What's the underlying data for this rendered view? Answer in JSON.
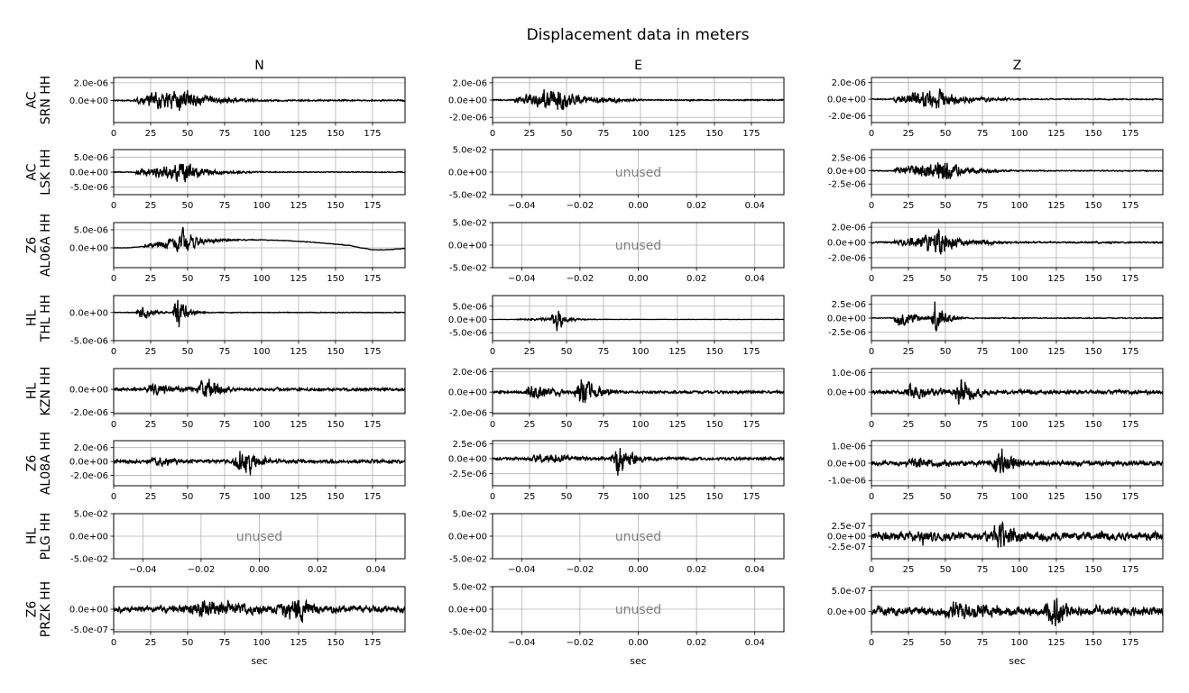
{
  "title": "Displacement data in meters",
  "columns": [
    "N",
    "E",
    "Z"
  ],
  "xlabel": "sec",
  "unused_label": "unused",
  "chart_data": {
    "type": "line",
    "title": "Displacement data in meters",
    "xlabel": "sec",
    "x_ticks_used": [
      "0",
      "25",
      "50",
      "75",
      "100",
      "125",
      "150",
      "175"
    ],
    "x_ticks_unused": [
      "−0.04",
      "−0.02",
      "0.00",
      "0.02",
      "0.04"
    ],
    "y_ticks_unused": [
      "5.0e-02",
      "0.0e+00",
      "-5.0e-02"
    ],
    "grid": true,
    "line_color": "#000000",
    "rows": [
      {
        "label": [
          "AC",
          "SRN HH"
        ],
        "panels": [
          {
            "col": "N",
            "unused": false,
            "xlim": [
              0,
              197
            ],
            "ylim": [
              -2.5e-06,
              2.6e-06
            ],
            "yticks": [
              "2.0e-06",
              "0.0e+00"
            ],
            "yvals": [
              2e-06,
              0
            ],
            "amp": 1.8e-06,
            "events": [
              [
                15,
                40,
                55,
                0.9
              ],
              [
                40,
                45,
                25,
                1.0
              ]
            ],
            "noise": 0.06
          },
          {
            "col": "E",
            "unused": false,
            "xlim": [
              0,
              197
            ],
            "ylim": [
              -2.6e-06,
              2.6e-06
            ],
            "yticks": [
              "2.0e-06",
              "0.0e+00",
              "-2.0e-06"
            ],
            "yvals": [
              2e-06,
              0,
              -2e-06
            ],
            "amp": 2e-06,
            "events": [
              [
                15,
                40,
                55,
                0.8
              ],
              [
                40,
                45,
                25,
                1.0
              ]
            ],
            "noise": 0.05
          },
          {
            "col": "Z",
            "unused": false,
            "xlim": [
              0,
              197
            ],
            "ylim": [
              -2.8e-06,
              2.6e-06
            ],
            "yticks": [
              "2.0e-06",
              "0.0e+00",
              "-2.0e-06"
            ],
            "yvals": [
              2e-06,
              0,
              -2e-06
            ],
            "amp": 1.8e-06,
            "events": [
              [
                15,
                40,
                55,
                0.8
              ],
              [
                40,
                45,
                25,
                1.0
              ]
            ],
            "noise": 0.05
          }
        ]
      },
      {
        "label": [
          "AC",
          "LSK HH"
        ],
        "panels": [
          {
            "col": "N",
            "unused": false,
            "xlim": [
              0,
              197
            ],
            "ylim": [
              -7.5e-06,
              7.5e-06
            ],
            "yticks": [
              "5.0e-06",
              "0.0e+00",
              "-5.0e-06"
            ],
            "yvals": [
              5e-06,
              0,
              -5e-06
            ],
            "amp": 6.5e-06,
            "events": [
              [
                15,
                40,
                55,
                0.5
              ],
              [
                40,
                47,
                25,
                1.0
              ]
            ],
            "noise": 0.03
          },
          {
            "col": "E",
            "unused": true
          },
          {
            "col": "Z",
            "unused": false,
            "xlim": [
              0,
              197
            ],
            "ylim": [
              -4.5e-06,
              4e-06
            ],
            "yticks": [
              "2.5e-06",
              "0.0e+00",
              "-2.5e-06"
            ],
            "yvals": [
              2.5e-06,
              0,
              -2.5e-06
            ],
            "amp": 4e-06,
            "events": [
              [
                15,
                40,
                55,
                0.5
              ],
              [
                40,
                45,
                30,
                1.0
              ]
            ],
            "noise": 0.03
          }
        ]
      },
      {
        "label": [
          "Z6",
          "AL06A HH"
        ],
        "panels": [
          {
            "col": "N",
            "unused": false,
            "xlim": [
              0,
              197
            ],
            "ylim": [
              -5.5e-06,
              7e-06
            ],
            "yticks": [
              "5.0e-06",
              "0.0e+00"
            ],
            "yvals": [
              5e-06,
              0
            ],
            "amp": 5e-06,
            "events": [
              [
                20,
                40,
                50,
                0.4
              ],
              [
                40,
                47,
                20,
                1.0
              ]
            ],
            "noise": 0.02,
            "drift": 2.2e-06
          },
          {
            "col": "E",
            "unused": true
          },
          {
            "col": "Z",
            "unused": false,
            "xlim": [
              0,
              197
            ],
            "ylim": [
              -3.3e-06,
              2.6e-06
            ],
            "yticks": [
              "2.0e-06",
              "0.0e+00",
              "-2.0e-06"
            ],
            "yvals": [
              2e-06,
              0,
              -2e-06
            ],
            "amp": 2.6e-06,
            "events": [
              [
                15,
                40,
                60,
                0.5
              ],
              [
                40,
                45,
                25,
                1.0
              ]
            ],
            "noise": 0.05
          }
        ]
      },
      {
        "label": [
          "HL",
          "THL HH"
        ],
        "panels": [
          {
            "col": "N",
            "unused": false,
            "xlim": [
              0,
              197
            ],
            "ylim": [
              -5e-06,
              3e-06
            ],
            "yticks": [
              "0.0e+00",
              "-5.0e-06"
            ],
            "yvals": [
              0,
              -5e-06
            ],
            "amp": 4e-06,
            "events": [
              [
                15,
                20,
                15,
                0.4
              ],
              [
                40,
                42,
                15,
                1.0
              ]
            ],
            "noise": 0.02
          },
          {
            "col": "E",
            "unused": false,
            "xlim": [
              0,
              197
            ],
            "ylim": [
              -8e-06,
              9e-06
            ],
            "yticks": [
              "5.0e-06",
              "0.0e+00",
              "-5.0e-06"
            ],
            "yvals": [
              5e-06,
              0,
              -5e-06
            ],
            "amp": 7.5e-06,
            "events": [
              [
                15,
                40,
                40,
                0.12
              ],
              [
                40,
                43,
                12,
                1.0
              ]
            ],
            "noise": 0.01
          },
          {
            "col": "Z",
            "unused": false,
            "xlim": [
              0,
              197
            ],
            "ylim": [
              -4e-06,
              4e-06
            ],
            "yticks": [
              "2.5e-06",
              "0.0e+00",
              "-2.5e-06"
            ],
            "yvals": [
              2.5e-06,
              0,
              -2.5e-06
            ],
            "amp": 3.8e-06,
            "events": [
              [
                15,
                20,
                25,
                0.6
              ],
              [
                40,
                43,
                15,
                1.0
              ]
            ],
            "noise": 0.03
          }
        ]
      },
      {
        "label": [
          "HL",
          "KZN HH"
        ],
        "panels": [
          {
            "col": "N",
            "unused": false,
            "xlim": [
              0,
              197
            ],
            "ylim": [
              -2.1e-06,
              1.8e-06
            ],
            "yticks": [
              "0.0e+00",
              "-2.0e-06"
            ],
            "yvals": [
              0,
              -2e-06
            ],
            "amp": 1.5e-06,
            "events": [
              [
                22,
                25,
                45,
                0.5
              ],
              [
                55,
                65,
                20,
                1.0
              ]
            ],
            "noise": 0.1
          },
          {
            "col": "E",
            "unused": false,
            "xlim": [
              0,
              197
            ],
            "ylim": [
              -2.1e-06,
              2.3e-06
            ],
            "yticks": [
              "2.0e-06",
              "0.0e+00",
              "-2.0e-06"
            ],
            "yvals": [
              2e-06,
              0,
              -2e-06
            ],
            "amp": 2e-06,
            "events": [
              [
                22,
                25,
                45,
                0.5
              ],
              [
                55,
                60,
                25,
                1.0
              ]
            ],
            "noise": 0.08
          },
          {
            "col": "Z",
            "unused": false,
            "xlim": [
              0,
              197
            ],
            "ylim": [
              -1.1e-06,
              1.2e-06
            ],
            "yticks": [
              "1.0e-06",
              "0.0e+00"
            ],
            "yvals": [
              1e-06,
              0
            ],
            "amp": 1e-06,
            "events": [
              [
                22,
                25,
                50,
                0.6
              ],
              [
                55,
                60,
                25,
                1.0
              ]
            ],
            "noise": 0.12
          }
        ]
      },
      {
        "label": [
          "Z6",
          "AL08A HH"
        ],
        "panels": [
          {
            "col": "N",
            "unused": false,
            "xlim": [
              0,
              197
            ],
            "ylim": [
              -3.5e-06,
              3e-06
            ],
            "yticks": [
              "2.0e-06",
              "0.0e+00",
              "-2.0e-06"
            ],
            "yvals": [
              2e-06,
              0,
              -2e-06
            ],
            "amp": 2.6e-06,
            "events": [
              [
                20,
                30,
                70,
                0.35
              ],
              [
                80,
                88,
                25,
                1.0
              ]
            ],
            "noise": 0.12
          },
          {
            "col": "E",
            "unused": false,
            "xlim": [
              0,
              197
            ],
            "ylim": [
              -4.5e-06,
              3e-06
            ],
            "yticks": [
              "2.5e-06",
              "0.0e+00",
              "-2.5e-06"
            ],
            "yvals": [
              2.5e-06,
              0,
              -2.5e-06
            ],
            "amp": 3.6e-06,
            "events": [
              [
                20,
                35,
                60,
                0.3
              ],
              [
                80,
                85,
                25,
                1.0
              ]
            ],
            "noise": 0.08
          },
          {
            "col": "Z",
            "unused": false,
            "xlim": [
              0,
              197
            ],
            "ylim": [
              -1.3e-06,
              1.3e-06
            ],
            "yticks": [
              "1.0e-06",
              "0.0e+00",
              "-1.0e-06"
            ],
            "yvals": [
              1e-06,
              0,
              -1e-06
            ],
            "amp": 1.1e-06,
            "events": [
              [
                20,
                30,
                70,
                0.4
              ],
              [
                80,
                88,
                25,
                1.0
              ]
            ],
            "noise": 0.15
          }
        ]
      },
      {
        "label": [
          "HL",
          "PLG HH"
        ],
        "panels": [
          {
            "col": "N",
            "unused": true
          },
          {
            "col": "E",
            "unused": true
          },
          {
            "col": "Z",
            "unused": false,
            "xlim": [
              0,
              197
            ],
            "ylim": [
              -5.5e-07,
              5.5e-07
            ],
            "yticks": [
              "2.5e-07",
              "0.0e+00",
              "-2.5e-07"
            ],
            "yvals": [
              2.5e-07,
              0,
              -2.5e-07
            ],
            "amp": 5.2e-07,
            "events": [
              [
                20,
                35,
                80,
                0.45
              ],
              [
                80,
                88,
                25,
                1.0
              ]
            ],
            "noise": 0.25
          }
        ]
      },
      {
        "label": [
          "Z6",
          "PRZK HH"
        ],
        "panels": [
          {
            "col": "N",
            "unused": false,
            "xlim": [
              0,
              197
            ],
            "ylim": [
              -5.5e-07,
              5.5e-07
            ],
            "yticks": [
              "0.0e+00",
              "-5.0e-07"
            ],
            "yvals": [
              0,
              -5e-07
            ],
            "amp": 5e-07,
            "events": [
              [
                40,
                60,
                110,
                0.6
              ],
              [
                110,
                125,
                20,
                1.0
              ]
            ],
            "noise": 0.2
          },
          {
            "col": "E",
            "unused": true
          },
          {
            "col": "Z",
            "unused": false,
            "xlim": [
              0,
              197
            ],
            "ylim": [
              -5e-07,
              6e-07
            ],
            "yticks": [
              "5.0e-07",
              "0.0e+00"
            ],
            "yvals": [
              5e-07,
              0
            ],
            "amp": 5.5e-07,
            "events": [
              [
                40,
                60,
                110,
                0.5
              ],
              [
                115,
                125,
                20,
                1.0
              ]
            ],
            "noise": 0.25
          }
        ]
      }
    ]
  }
}
